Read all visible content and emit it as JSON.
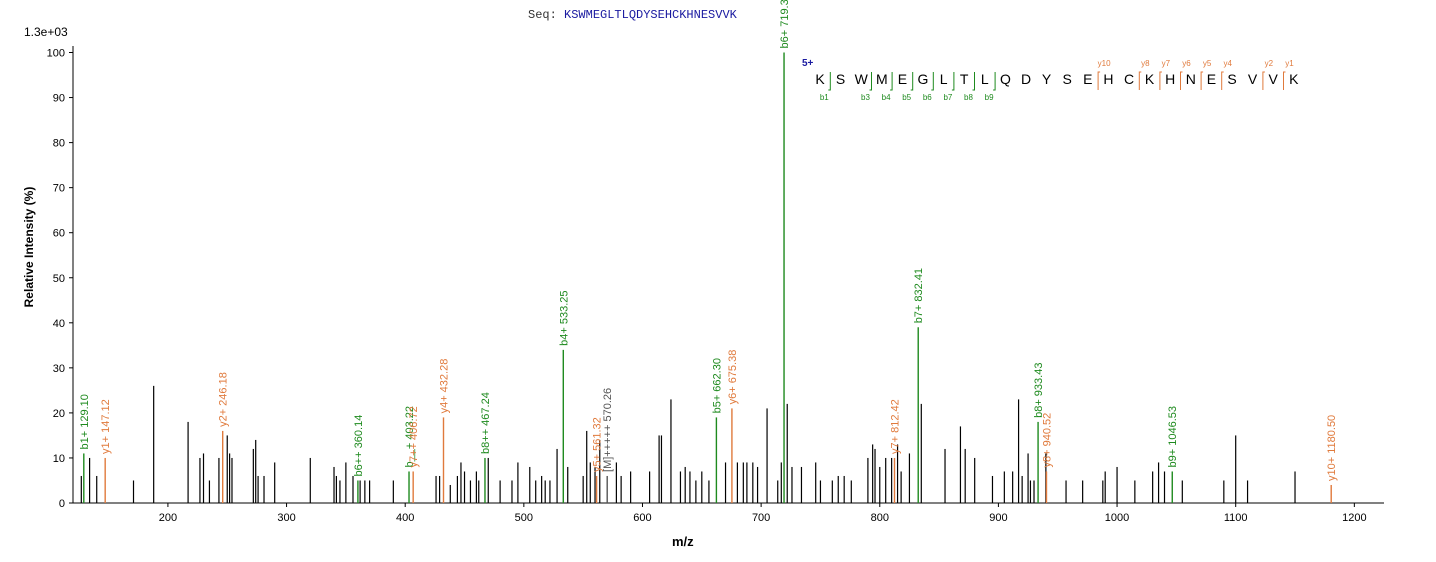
{
  "header": {
    "seq_prefix": "Seq:",
    "sequence": "KSWMEGLTLQDYSEHCKHNESVVK",
    "scale": "1.3e+03"
  },
  "chart_data": {
    "type": "bar",
    "xlabel": "m/z",
    "ylabel": "Relative   Intensity (%)",
    "xlim": [
      120,
      1225
    ],
    "ylim": [
      0,
      101
    ],
    "x_ticks": [
      200,
      300,
      400,
      500,
      600,
      700,
      800,
      900,
      1000,
      1100,
      1200
    ],
    "y_ticks": [
      0,
      10,
      20,
      30,
      40,
      50,
      60,
      70,
      80,
      90,
      100
    ],
    "colors": {
      "b": "#1e8a1e",
      "y": "#e07a3c",
      "other": "#000000",
      "precursor": "#555555",
      "charge": "#1a1aa0"
    },
    "labeled_peaks": [
      {
        "mz": 129.1,
        "intensity": 11,
        "label": "b1+ 129.10",
        "type": "b"
      },
      {
        "mz": 147.12,
        "intensity": 10,
        "label": "y1+ 147.12",
        "type": "y"
      },
      {
        "mz": 246.18,
        "intensity": 16,
        "label": "y2+ 246.18",
        "type": "y"
      },
      {
        "mz": 360.14,
        "intensity": 5,
        "label": "b6++ 360.14",
        "type": "b"
      },
      {
        "mz": 403.22,
        "intensity": 7,
        "label": "b__+ 403.22",
        "type": "b"
      },
      {
        "mz": 406.72,
        "intensity": 7,
        "label": "y7++ 406.72",
        "type": "y"
      },
      {
        "mz": 432.28,
        "intensity": 19,
        "label": "y4+ 432.28",
        "type": "y"
      },
      {
        "mz": 467.24,
        "intensity": 10,
        "label": "b8++ 467.24",
        "type": "b"
      },
      {
        "mz": 533.25,
        "intensity": 34,
        "label": "b4+ 533.25",
        "type": "b"
      },
      {
        "mz": 561.32,
        "intensity": 6,
        "label": "y5+ 561.32",
        "type": "y"
      },
      {
        "mz": 570.26,
        "intensity": 6,
        "label": "[M]+++++ 570.26",
        "type": "precursor"
      },
      {
        "mz": 662.3,
        "intensity": 19,
        "label": "b5+ 662.30",
        "type": "b"
      },
      {
        "mz": 675.38,
        "intensity": 21,
        "label": "y6+ 675.38",
        "type": "y"
      },
      {
        "mz": 719.31,
        "intensity": 100,
        "label": "b6+ 719.31",
        "type": "b"
      },
      {
        "mz": 812.42,
        "intensity": 10,
        "label": "y7+ 812.42",
        "type": "y"
      },
      {
        "mz": 832.41,
        "intensity": 39,
        "label": "b7+ 832.41",
        "type": "b"
      },
      {
        "mz": 933.43,
        "intensity": 18,
        "label": "b8+ 933.43",
        "type": "b"
      },
      {
        "mz": 940.52,
        "intensity": 7,
        "label": "y8+ 940.52",
        "type": "y"
      },
      {
        "mz": 1046.53,
        "intensity": 7,
        "label": "b9+ 1046.53",
        "type": "b"
      },
      {
        "mz": 1180.5,
        "intensity": 4,
        "label": "y10+ 1180.50",
        "type": "y"
      }
    ],
    "peaks": [
      [
        127,
        6
      ],
      [
        134,
        10
      ],
      [
        140,
        6
      ],
      [
        171,
        5
      ],
      [
        188,
        26
      ],
      [
        217,
        18
      ],
      [
        227,
        10
      ],
      [
        230,
        11
      ],
      [
        235,
        5
      ],
      [
        243,
        10
      ],
      [
        250,
        15
      ],
      [
        252,
        11
      ],
      [
        254,
        10
      ],
      [
        272,
        12
      ],
      [
        274,
        14
      ],
      [
        276,
        6
      ],
      [
        281,
        6
      ],
      [
        290,
        9
      ],
      [
        320,
        10
      ],
      [
        340,
        8
      ],
      [
        342,
        6
      ],
      [
        345,
        5
      ],
      [
        350,
        9
      ],
      [
        356,
        6
      ],
      [
        362,
        5
      ],
      [
        366,
        5
      ],
      [
        370,
        5
      ],
      [
        390,
        5
      ],
      [
        426,
        6
      ],
      [
        429,
        6
      ],
      [
        438,
        4
      ],
      [
        444,
        6
      ],
      [
        447,
        9
      ],
      [
        450,
        7
      ],
      [
        455,
        5
      ],
      [
        460,
        7
      ],
      [
        462,
        5
      ],
      [
        470,
        10
      ],
      [
        480,
        5
      ],
      [
        490,
        5
      ],
      [
        495,
        9
      ],
      [
        505,
        8
      ],
      [
        510,
        5
      ],
      [
        515,
        6
      ],
      [
        518,
        5
      ],
      [
        522,
        5
      ],
      [
        528,
        12
      ],
      [
        537,
        8
      ],
      [
        550,
        6
      ],
      [
        553,
        16
      ],
      [
        556,
        9
      ],
      [
        560,
        8
      ],
      [
        564,
        14
      ],
      [
        578,
        9
      ],
      [
        582,
        6
      ],
      [
        590,
        7
      ],
      [
        606,
        7
      ],
      [
        614,
        15
      ],
      [
        616,
        15
      ],
      [
        624,
        23
      ],
      [
        632,
        7
      ],
      [
        636,
        8
      ],
      [
        640,
        7
      ],
      [
        645,
        5
      ],
      [
        650,
        7
      ],
      [
        656,
        5
      ],
      [
        670,
        9
      ],
      [
        680,
        9
      ],
      [
        685,
        9
      ],
      [
        688,
        9
      ],
      [
        693,
        9
      ],
      [
        697,
        8
      ],
      [
        705,
        21
      ],
      [
        714,
        5
      ],
      [
        717,
        9
      ],
      [
        722,
        22
      ],
      [
        726,
        8
      ],
      [
        734,
        8
      ],
      [
        746,
        9
      ],
      [
        750,
        5
      ],
      [
        760,
        5
      ],
      [
        765,
        6
      ],
      [
        770,
        6
      ],
      [
        776,
        5
      ],
      [
        790,
        10
      ],
      [
        794,
        13
      ],
      [
        796,
        12
      ],
      [
        800,
        8
      ],
      [
        805,
        10
      ],
      [
        810,
        10
      ],
      [
        815,
        13
      ],
      [
        818,
        7
      ],
      [
        825,
        11
      ],
      [
        835,
        22
      ],
      [
        855,
        12
      ],
      [
        868,
        17
      ],
      [
        872,
        12
      ],
      [
        880,
        10
      ],
      [
        895,
        6
      ],
      [
        905,
        7
      ],
      [
        912,
        7
      ],
      [
        917,
        23
      ],
      [
        920,
        6
      ],
      [
        925,
        11
      ],
      [
        927,
        5
      ],
      [
        930,
        5
      ],
      [
        940,
        11
      ],
      [
        957,
        5
      ],
      [
        971,
        5
      ],
      [
        988,
        5
      ],
      [
        990,
        7
      ],
      [
        1000,
        8
      ],
      [
        1015,
        5
      ],
      [
        1030,
        7
      ],
      [
        1035,
        9
      ],
      [
        1040,
        7
      ],
      [
        1055,
        5
      ],
      [
        1090,
        5
      ],
      [
        1100,
        15
      ],
      [
        1110,
        5
      ],
      [
        1150,
        7
      ]
    ],
    "annotations": {
      "charge_state": "5+",
      "sequence_residues": [
        "K",
        "S",
        "W",
        "M",
        "E",
        "G",
        "L",
        "T",
        "L",
        "Q",
        "D",
        "Y",
        "S",
        "E",
        "H",
        "C",
        "K",
        "H",
        "N",
        "E",
        "S",
        "V",
        "V",
        "K"
      ],
      "b_ions": [
        {
          "label": "b1",
          "after_index": 0
        },
        {
          "label": "b3",
          "after_index": 2
        },
        {
          "label": "b4",
          "after_index": 3
        },
        {
          "label": "b5",
          "after_index": 4
        },
        {
          "label": "b6",
          "after_index": 5
        },
        {
          "label": "b7",
          "after_index": 6
        },
        {
          "label": "b8",
          "after_index": 7
        },
        {
          "label": "b9",
          "after_index": 8
        }
      ],
      "y_ions": [
        {
          "label": "y10",
          "after_index": 13
        },
        {
          "label": "y8",
          "after_index": 15
        },
        {
          "label": "y7",
          "after_index": 16
        },
        {
          "label": "y6",
          "after_index": 17
        },
        {
          "label": "y5",
          "after_index": 18
        },
        {
          "label": "y4",
          "after_index": 19
        },
        {
          "label": "y2",
          "after_index": 21
        },
        {
          "label": "y1",
          "after_index": 22
        }
      ]
    }
  }
}
